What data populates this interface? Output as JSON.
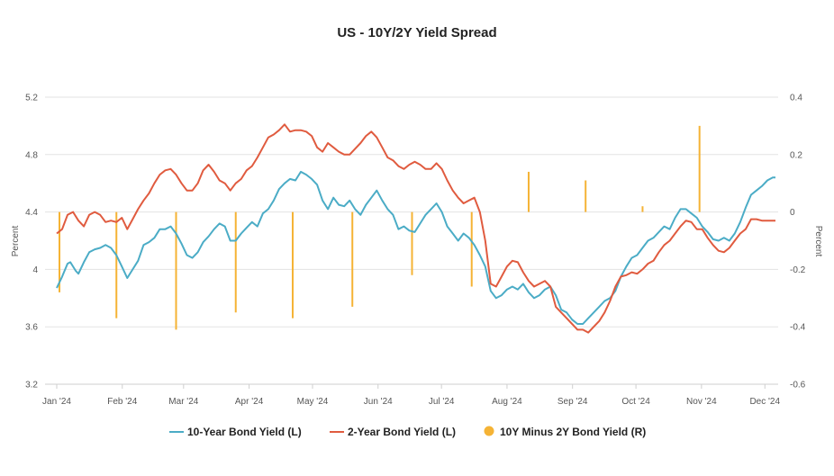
{
  "chart_data": {
    "type": "line",
    "title": "US - 10Y/2Y Yield Spread",
    "x_tick_labels": [
      "Jan '24",
      "Feb '24",
      "Mar '24",
      "Apr '24",
      "May '24",
      "Jun '24",
      "Jul '24",
      "Aug '24",
      "Sep '24",
      "Oct '24",
      "Nov '24",
      "Dec '24"
    ],
    "y_left": {
      "label": "Percent",
      "min": 3.2,
      "max": 5.2,
      "ticks": [
        "3.2",
        "3.6",
        "4",
        "4.4",
        "4.8",
        "5.2"
      ]
    },
    "y_right": {
      "label": "Percent",
      "min": -0.6,
      "max": 0.4,
      "ticks": [
        "-0.6",
        "-0.4",
        "-0.2",
        "0",
        "0.2",
        "0.4"
      ]
    },
    "series": [
      {
        "name": "10-Year Bond Yield (L)",
        "axis": "left",
        "color": "#4bacc6",
        "values": [
          [
            0,
            3.87
          ],
          [
            2,
            3.95
          ],
          [
            4,
            4.04
          ],
          [
            5,
            4.05
          ],
          [
            7,
            3.99
          ],
          [
            8,
            3.97
          ],
          [
            10,
            4.05
          ],
          [
            12,
            4.12
          ],
          [
            14,
            4.14
          ],
          [
            16,
            4.15
          ],
          [
            18,
            4.17
          ],
          [
            20,
            4.15
          ],
          [
            22,
            4.1
          ],
          [
            24,
            4.02
          ],
          [
            26,
            3.94
          ],
          [
            28,
            4.0
          ],
          [
            30,
            4.06
          ],
          [
            32,
            4.17
          ],
          [
            34,
            4.19
          ],
          [
            36,
            4.22
          ],
          [
            38,
            4.28
          ],
          [
            40,
            4.28
          ],
          [
            42,
            4.3
          ],
          [
            44,
            4.25
          ],
          [
            46,
            4.18
          ],
          [
            48,
            4.1
          ],
          [
            50,
            4.08
          ],
          [
            52,
            4.12
          ],
          [
            54,
            4.19
          ],
          [
            56,
            4.23
          ],
          [
            58,
            4.28
          ],
          [
            60,
            4.32
          ],
          [
            62,
            4.3
          ],
          [
            64,
            4.2
          ],
          [
            66,
            4.2
          ],
          [
            68,
            4.25
          ],
          [
            70,
            4.29
          ],
          [
            72,
            4.33
          ],
          [
            74,
            4.3
          ],
          [
            76,
            4.39
          ],
          [
            78,
            4.42
          ],
          [
            80,
            4.48
          ],
          [
            82,
            4.56
          ],
          [
            84,
            4.6
          ],
          [
            86,
            4.63
          ],
          [
            88,
            4.62
          ],
          [
            90,
            4.68
          ],
          [
            92,
            4.66
          ],
          [
            94,
            4.63
          ],
          [
            96,
            4.59
          ],
          [
            98,
            4.48
          ],
          [
            100,
            4.42
          ],
          [
            102,
            4.5
          ],
          [
            104,
            4.45
          ],
          [
            106,
            4.44
          ],
          [
            108,
            4.48
          ],
          [
            110,
            4.42
          ],
          [
            112,
            4.38
          ],
          [
            114,
            4.45
          ],
          [
            116,
            4.5
          ],
          [
            118,
            4.55
          ],
          [
            120,
            4.48
          ],
          [
            122,
            4.42
          ],
          [
            124,
            4.38
          ],
          [
            126,
            4.28
          ],
          [
            128,
            4.3
          ],
          [
            130,
            4.27
          ],
          [
            132,
            4.26
          ],
          [
            134,
            4.32
          ],
          [
            136,
            4.38
          ],
          [
            138,
            4.42
          ],
          [
            140,
            4.46
          ],
          [
            142,
            4.4
          ],
          [
            144,
            4.3
          ],
          [
            146,
            4.25
          ],
          [
            148,
            4.2
          ],
          [
            150,
            4.25
          ],
          [
            152,
            4.22
          ],
          [
            154,
            4.17
          ],
          [
            156,
            4.1
          ],
          [
            158,
            4.02
          ],
          [
            160,
            3.85
          ],
          [
            162,
            3.8
          ],
          [
            164,
            3.82
          ],
          [
            166,
            3.86
          ],
          [
            168,
            3.88
          ],
          [
            170,
            3.86
          ],
          [
            172,
            3.9
          ],
          [
            174,
            3.84
          ],
          [
            176,
            3.8
          ],
          [
            178,
            3.82
          ],
          [
            180,
            3.86
          ],
          [
            182,
            3.88
          ],
          [
            184,
            3.82
          ],
          [
            186,
            3.72
          ],
          [
            188,
            3.7
          ],
          [
            190,
            3.65
          ],
          [
            192,
            3.62
          ],
          [
            194,
            3.62
          ],
          [
            196,
            3.66
          ],
          [
            198,
            3.7
          ],
          [
            200,
            3.74
          ],
          [
            202,
            3.78
          ],
          [
            204,
            3.8
          ],
          [
            206,
            3.85
          ],
          [
            208,
            3.95
          ],
          [
            210,
            4.02
          ],
          [
            212,
            4.08
          ],
          [
            214,
            4.1
          ],
          [
            216,
            4.15
          ],
          [
            218,
            4.2
          ],
          [
            220,
            4.22
          ],
          [
            222,
            4.26
          ],
          [
            224,
            4.3
          ],
          [
            226,
            4.28
          ],
          [
            228,
            4.36
          ],
          [
            230,
            4.42
          ],
          [
            232,
            4.42
          ],
          [
            234,
            4.39
          ],
          [
            236,
            4.36
          ],
          [
            238,
            4.3
          ],
          [
            240,
            4.26
          ],
          [
            242,
            4.21
          ],
          [
            244,
            4.2
          ],
          [
            246,
            4.22
          ],
          [
            248,
            4.2
          ],
          [
            250,
            4.25
          ],
          [
            252,
            4.33
          ],
          [
            254,
            4.43
          ],
          [
            256,
            4.52
          ],
          [
            258,
            4.55
          ],
          [
            260,
            4.58
          ],
          [
            262,
            4.62
          ],
          [
            264,
            4.64
          ],
          [
            265,
            4.64
          ]
        ]
      },
      {
        "name": "2-Year Bond Yield (L)",
        "axis": "left",
        "color": "#e05b3f",
        "values": [
          [
            0,
            4.25
          ],
          [
            2,
            4.28
          ],
          [
            4,
            4.38
          ],
          [
            6,
            4.4
          ],
          [
            8,
            4.34
          ],
          [
            10,
            4.3
          ],
          [
            12,
            4.38
          ],
          [
            14,
            4.4
          ],
          [
            16,
            4.38
          ],
          [
            18,
            4.33
          ],
          [
            20,
            4.34
          ],
          [
            22,
            4.33
          ],
          [
            24,
            4.36
          ],
          [
            26,
            4.28
          ],
          [
            28,
            4.35
          ],
          [
            30,
            4.42
          ],
          [
            32,
            4.48
          ],
          [
            34,
            4.53
          ],
          [
            36,
            4.6
          ],
          [
            38,
            4.66
          ],
          [
            40,
            4.69
          ],
          [
            42,
            4.7
          ],
          [
            44,
            4.66
          ],
          [
            46,
            4.6
          ],
          [
            48,
            4.55
          ],
          [
            50,
            4.55
          ],
          [
            52,
            4.6
          ],
          [
            54,
            4.69
          ],
          [
            56,
            4.73
          ],
          [
            58,
            4.68
          ],
          [
            60,
            4.62
          ],
          [
            62,
            4.6
          ],
          [
            64,
            4.55
          ],
          [
            66,
            4.6
          ],
          [
            68,
            4.63
          ],
          [
            70,
            4.69
          ],
          [
            72,
            4.72
          ],
          [
            74,
            4.78
          ],
          [
            76,
            4.85
          ],
          [
            78,
            4.92
          ],
          [
            80,
            4.94
          ],
          [
            82,
            4.97
          ],
          [
            84,
            5.01
          ],
          [
            86,
            4.96
          ],
          [
            88,
            4.97
          ],
          [
            90,
            4.97
          ],
          [
            92,
            4.96
          ],
          [
            94,
            4.93
          ],
          [
            96,
            4.85
          ],
          [
            98,
            4.82
          ],
          [
            100,
            4.88
          ],
          [
            102,
            4.85
          ],
          [
            104,
            4.82
          ],
          [
            106,
            4.8
          ],
          [
            108,
            4.8
          ],
          [
            110,
            4.84
          ],
          [
            112,
            4.88
          ],
          [
            114,
            4.93
          ],
          [
            116,
            4.96
          ],
          [
            118,
            4.92
          ],
          [
            120,
            4.85
          ],
          [
            122,
            4.78
          ],
          [
            124,
            4.76
          ],
          [
            126,
            4.72
          ],
          [
            128,
            4.7
          ],
          [
            130,
            4.73
          ],
          [
            132,
            4.75
          ],
          [
            134,
            4.73
          ],
          [
            136,
            4.7
          ],
          [
            138,
            4.7
          ],
          [
            140,
            4.74
          ],
          [
            142,
            4.7
          ],
          [
            144,
            4.62
          ],
          [
            146,
            4.55
          ],
          [
            148,
            4.5
          ],
          [
            150,
            4.46
          ],
          [
            152,
            4.48
          ],
          [
            154,
            4.5
          ],
          [
            156,
            4.4
          ],
          [
            158,
            4.2
          ],
          [
            160,
            3.9
          ],
          [
            162,
            3.88
          ],
          [
            164,
            3.95
          ],
          [
            166,
            4.02
          ],
          [
            168,
            4.06
          ],
          [
            170,
            4.05
          ],
          [
            172,
            3.98
          ],
          [
            174,
            3.92
          ],
          [
            176,
            3.88
          ],
          [
            178,
            3.9
          ],
          [
            180,
            3.92
          ],
          [
            182,
            3.88
          ],
          [
            184,
            3.74
          ],
          [
            186,
            3.7
          ],
          [
            188,
            3.66
          ],
          [
            190,
            3.62
          ],
          [
            192,
            3.58
          ],
          [
            194,
            3.58
          ],
          [
            196,
            3.56
          ],
          [
            198,
            3.6
          ],
          [
            200,
            3.64
          ],
          [
            202,
            3.7
          ],
          [
            204,
            3.78
          ],
          [
            206,
            3.88
          ],
          [
            208,
            3.95
          ],
          [
            210,
            3.96
          ],
          [
            212,
            3.98
          ],
          [
            214,
            3.97
          ],
          [
            216,
            4.0
          ],
          [
            218,
            4.04
          ],
          [
            220,
            4.06
          ],
          [
            222,
            4.12
          ],
          [
            224,
            4.17
          ],
          [
            226,
            4.2
          ],
          [
            228,
            4.25
          ],
          [
            230,
            4.3
          ],
          [
            232,
            4.34
          ],
          [
            234,
            4.33
          ],
          [
            236,
            4.28
          ],
          [
            238,
            4.28
          ],
          [
            240,
            4.22
          ],
          [
            242,
            4.17
          ],
          [
            244,
            4.13
          ],
          [
            246,
            4.12
          ],
          [
            248,
            4.15
          ],
          [
            250,
            4.2
          ],
          [
            252,
            4.25
          ],
          [
            254,
            4.28
          ],
          [
            256,
            4.35
          ],
          [
            258,
            4.35
          ],
          [
            260,
            4.34
          ],
          [
            262,
            4.34
          ],
          [
            264,
            4.34
          ],
          [
            265,
            4.34
          ]
        ]
      },
      {
        "name": "10Y Minus 2Y Bond Yield (R)",
        "axis": "right",
        "type": "bar",
        "color": "#f5b335",
        "values": [
          [
            1,
            -0.28
          ],
          [
            22,
            -0.37
          ],
          [
            44,
            -0.41
          ],
          [
            66,
            -0.35
          ],
          [
            87,
            -0.37
          ],
          [
            109,
            -0.33
          ],
          [
            131,
            -0.22
          ],
          [
            153,
            -0.26
          ],
          [
            174,
            0.14
          ],
          [
            195,
            0.11
          ],
          [
            216,
            0.02
          ],
          [
            237,
            0.3
          ]
        ]
      }
    ],
    "legend": {
      "placement": "bottom"
    }
  }
}
